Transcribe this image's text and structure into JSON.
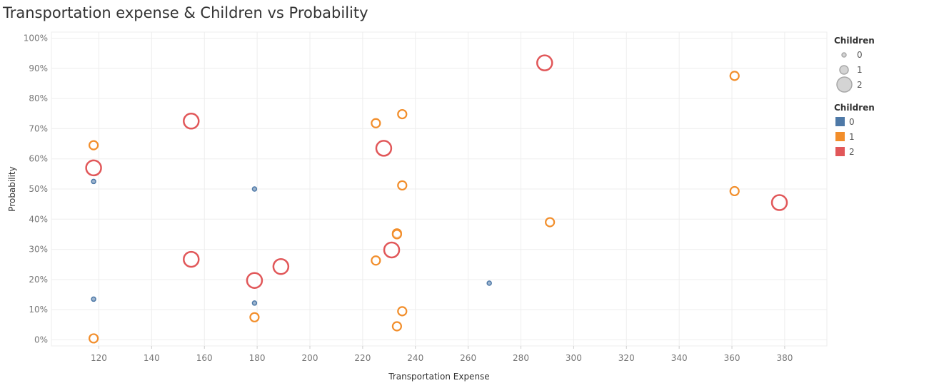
{
  "chart_data": {
    "type": "scatter",
    "title": "Transportation expense & Children vs Probability",
    "xlabel": "Transportation Expense",
    "ylabel": "Probability",
    "xlim": [
      102,
      396
    ],
    "ylim": [
      -2,
      102
    ],
    "x_ticks": [
      120,
      140,
      160,
      180,
      200,
      220,
      240,
      260,
      280,
      300,
      320,
      340,
      360,
      380
    ],
    "y_ticks": [
      0,
      10,
      20,
      30,
      40,
      50,
      60,
      70,
      80,
      90,
      100
    ],
    "y_tick_format": "percent",
    "grid": true,
    "size_legend": {
      "title": "Children",
      "entries": [
        {
          "label": "0",
          "children": 0
        },
        {
          "label": "1",
          "children": 1
        },
        {
          "label": "2",
          "children": 2
        }
      ]
    },
    "color_legend": {
      "title": "Children",
      "entries": [
        {
          "label": "0",
          "color": "#4e79a7"
        },
        {
          "label": "1",
          "color": "#f28e2b"
        },
        {
          "label": "2",
          "color": "#e15759"
        }
      ]
    },
    "series": [
      {
        "name": "0",
        "color": "#4e79a7",
        "points": [
          {
            "x": 118,
            "y": 52.5
          },
          {
            "x": 179,
            "y": 50
          },
          {
            "x": 118,
            "y": 13.5
          },
          {
            "x": 179,
            "y": 12.2
          },
          {
            "x": 268,
            "y": 18.8
          }
        ]
      },
      {
        "name": "1",
        "color": "#f28e2b",
        "points": [
          {
            "x": 361,
            "y": 87.5
          },
          {
            "x": 235,
            "y": 74.8
          },
          {
            "x": 225,
            "y": 71.8
          },
          {
            "x": 118,
            "y": 64.5
          },
          {
            "x": 235,
            "y": 51.2
          },
          {
            "x": 361,
            "y": 49.3
          },
          {
            "x": 291,
            "y": 39
          },
          {
            "x": 233,
            "y": 35.3
          },
          {
            "x": 233,
            "y": 35
          },
          {
            "x": 225,
            "y": 26.3
          },
          {
            "x": 235,
            "y": 9.5
          },
          {
            "x": 179,
            "y": 7.5
          },
          {
            "x": 233,
            "y": 4.5
          },
          {
            "x": 118,
            "y": 0.5
          }
        ]
      },
      {
        "name": "2",
        "color": "#e15759",
        "points": [
          {
            "x": 289,
            "y": 91.8
          },
          {
            "x": 155,
            "y": 72.5
          },
          {
            "x": 228,
            "y": 63.5
          },
          {
            "x": 118,
            "y": 57
          },
          {
            "x": 378,
            "y": 45.5
          },
          {
            "x": 231,
            "y": 29.8
          },
          {
            "x": 155,
            "y": 26.7
          },
          {
            "x": 189,
            "y": 24.3
          },
          {
            "x": 179,
            "y": 19.7
          }
        ]
      }
    ]
  }
}
